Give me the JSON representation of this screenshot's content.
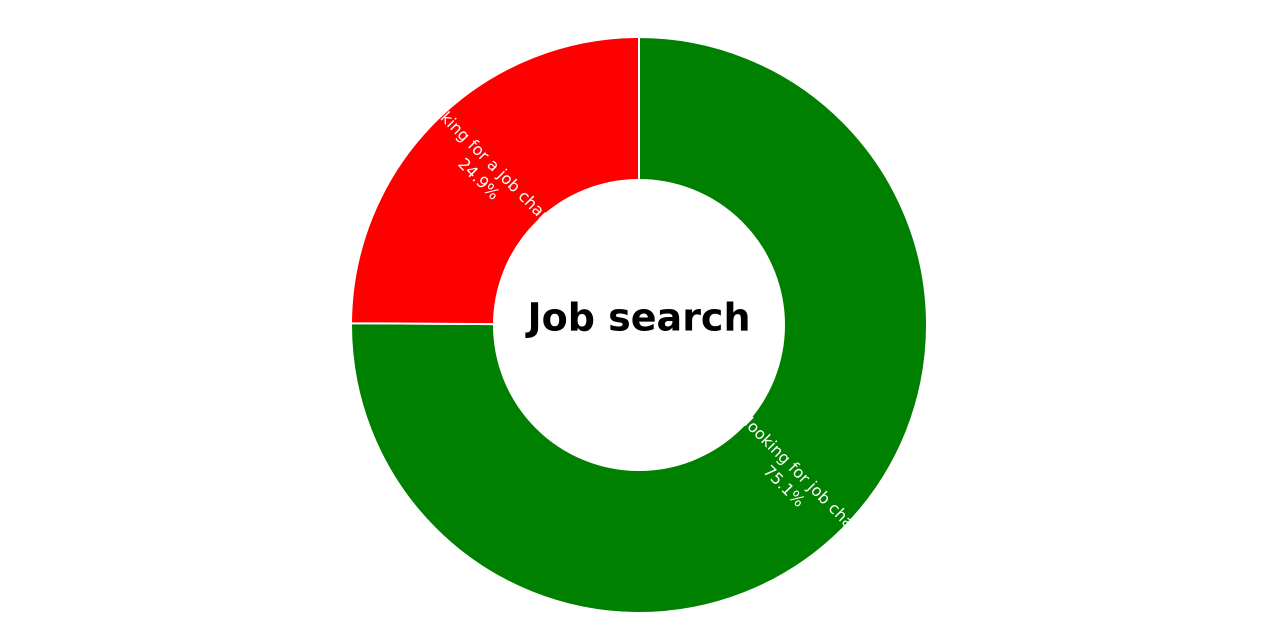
{
  "chart_data": {
    "type": "pie",
    "title": "Job search",
    "slices": [
      {
        "name": "Not looking for job change",
        "value": 75.1,
        "value_label": "75.1%",
        "color": "#008000"
      },
      {
        "name": "Looking for a job change",
        "value": 24.9,
        "value_label": "24.9%",
        "color": "#ff0000"
      }
    ]
  }
}
